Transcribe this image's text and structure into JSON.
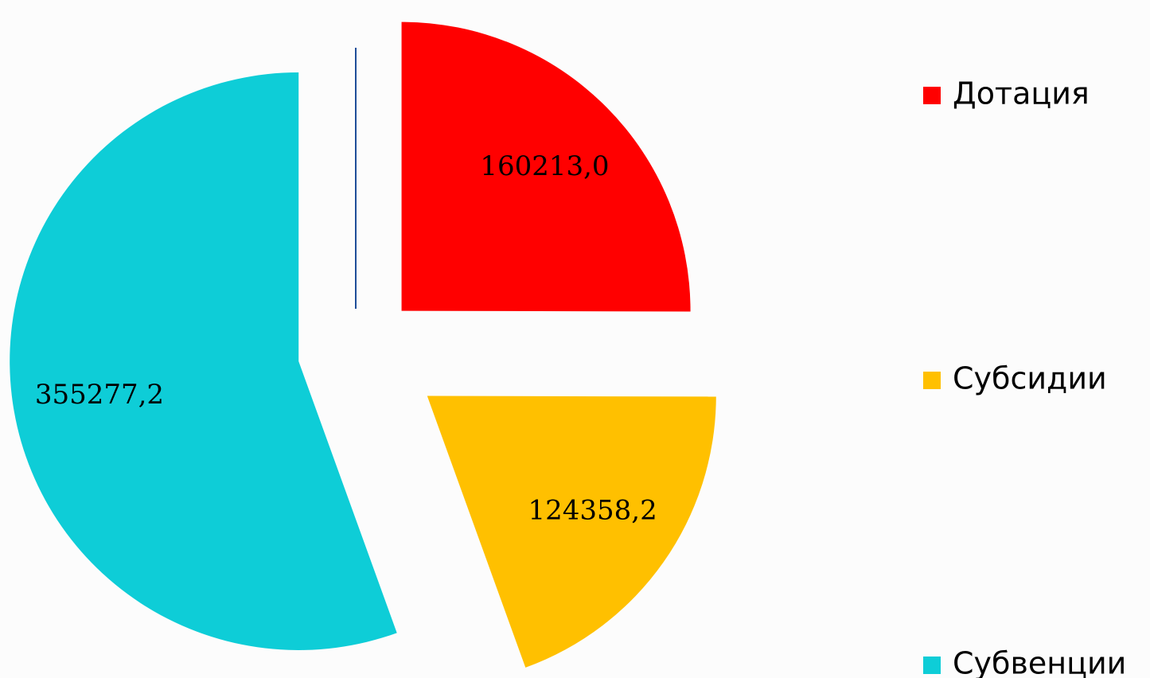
{
  "chart_data": {
    "type": "pie",
    "categories": [
      "Дотация",
      "Субсидии",
      "Субвенции"
    ],
    "values": [
      160213.0,
      124358.2,
      355277.2
    ],
    "value_labels": [
      "160213,0",
      "124358,2",
      "355277,2"
    ],
    "colors": [
      "#ff0000",
      "#ffc000",
      "#0ecdd7"
    ],
    "legend": "right"
  }
}
